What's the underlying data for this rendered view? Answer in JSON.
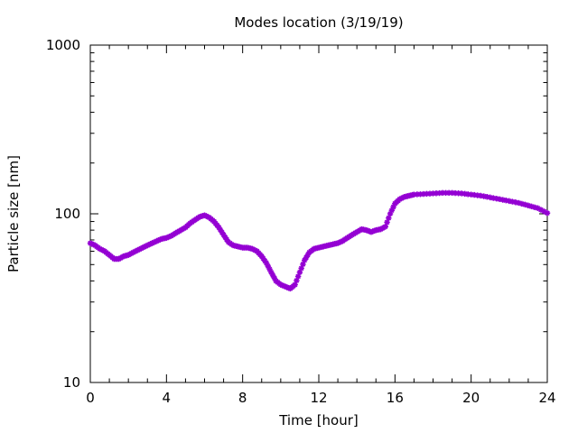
{
  "chart_data": {
    "type": "scatter",
    "title": "Modes location (3/19/19)",
    "xlabel": "Time [hour]",
    "ylabel": "Particle size [nm]",
    "xlim": [
      0,
      24
    ],
    "ylim": [
      10,
      1000
    ],
    "yscale": "log",
    "xticks": [
      "0",
      "4",
      "8",
      "12",
      "16",
      "20",
      "24"
    ],
    "yticks": [
      "10",
      "100",
      "1000"
    ],
    "grid": false,
    "legend": "none",
    "marker": "star",
    "series": [
      {
        "color": "#9400d3",
        "x": [
          0.0,
          0.25,
          0.5,
          0.75,
          1.0,
          1.25,
          1.5,
          1.75,
          2.0,
          2.25,
          2.5,
          2.75,
          3.0,
          3.25,
          3.5,
          3.75,
          4.0,
          4.25,
          4.5,
          4.75,
          5.0,
          5.25,
          5.5,
          5.75,
          6.0,
          6.25,
          6.5,
          6.75,
          7.0,
          7.25,
          7.5,
          7.75,
          8.0,
          8.25,
          8.5,
          8.75,
          9.0,
          9.25,
          9.5,
          9.75,
          10.0,
          10.25,
          10.5,
          10.75,
          11.0,
          11.25,
          11.5,
          11.75,
          12.0,
          12.25,
          12.5,
          12.75,
          13.0,
          13.25,
          13.5,
          13.75,
          14.0,
          14.25,
          14.5,
          14.75,
          15.0,
          15.25,
          15.5,
          15.75,
          16.0,
          16.25,
          16.5,
          16.75,
          17.0,
          17.5,
          18.0,
          18.5,
          19.0,
          19.5,
          20.0,
          20.5,
          21.0,
          21.5,
          22.0,
          22.5,
          23.0,
          23.5,
          24.0
        ],
        "y": [
          67,
          65,
          62,
          60,
          57,
          54,
          54,
          56,
          57,
          59,
          61,
          63,
          65,
          67,
          69,
          71,
          72,
          74,
          77,
          80,
          83,
          88,
          92,
          96,
          98,
          95,
          90,
          83,
          75,
          68,
          65,
          64,
          63,
          63,
          62,
          60,
          56,
          51,
          45,
          40,
          38,
          37,
          36,
          38,
          45,
          53,
          59,
          62,
          63,
          64,
          65,
          66,
          67,
          69,
          72,
          75,
          78,
          81,
          80,
          78,
          80,
          81,
          84,
          100,
          115,
          122,
          126,
          128,
          130,
          131,
          132,
          133,
          133,
          132,
          130,
          128,
          125,
          122,
          119,
          116,
          112,
          108,
          101
        ]
      }
    ]
  }
}
